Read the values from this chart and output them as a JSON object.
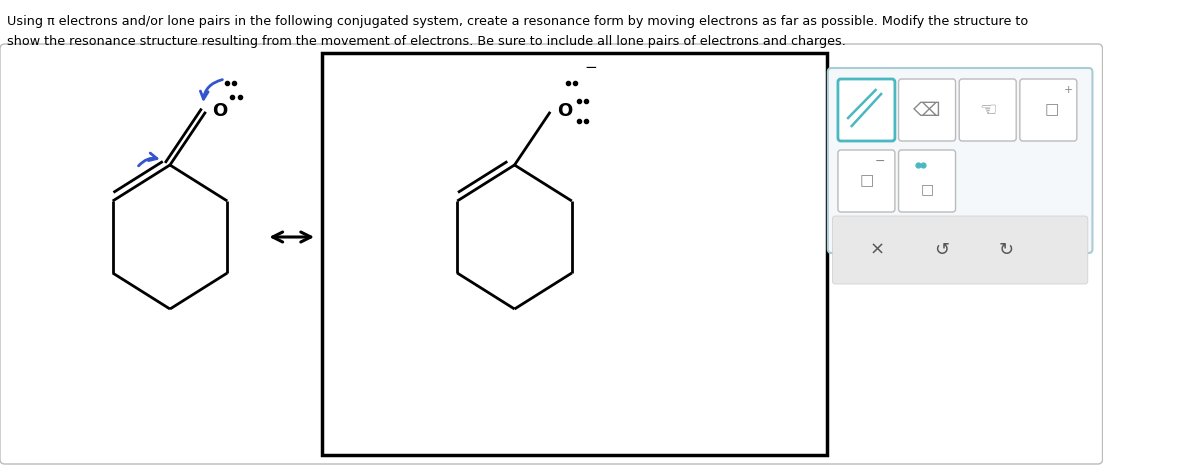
{
  "title_line1": "Using π electrons and/or lone pairs in the following conjugated system, create a resonance form by moving electrons as far as possible. Modify the structure to",
  "title_line2": "show the resonance structure resulting from the movement of electrons. Be sure to include all lone pairs of electrons and charges.",
  "bg_color": "#ffffff",
  "outer_box_color": "#cccccc",
  "black_box_color": "#000000",
  "mol_color": "#000000",
  "arrow_blue": "#3355cc",
  "lp_color": "#000000",
  "toolbar_bg": "#ffffff",
  "toolbar_border": "#aacccc",
  "teal": "#4ab8c1",
  "gray_bottom": "#e8e8e8"
}
